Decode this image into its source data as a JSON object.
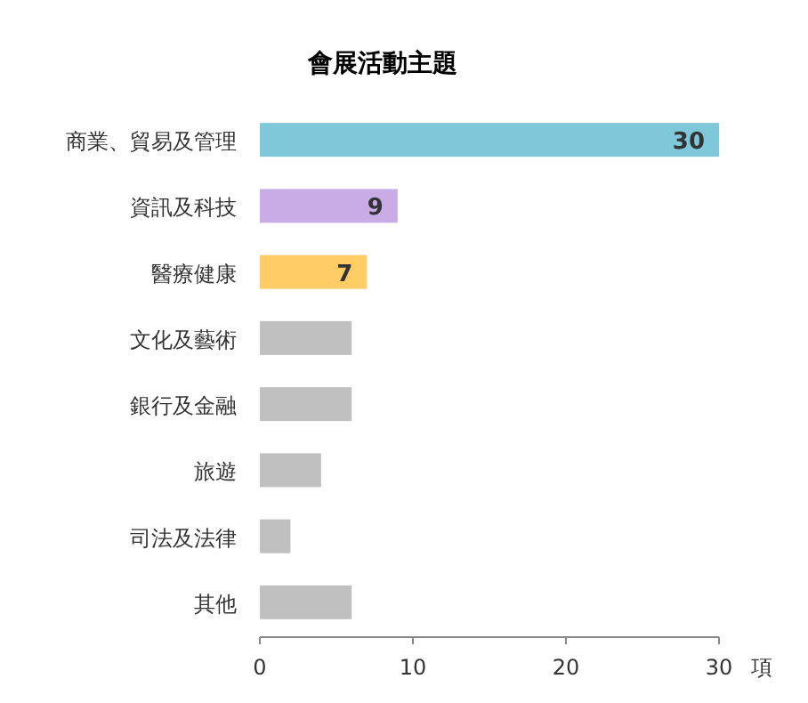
{
  "chart_data": {
    "type": "bar",
    "orientation": "horizontal",
    "title": "會展活動主題",
    "xlabel": "項",
    "categories": [
      "商業、貿易及管理",
      "資訊及科技",
      "醫療健康",
      "文化及藝術",
      "銀行及金融",
      "旅遊",
      "司法及法律",
      "其他"
    ],
    "values": [
      30,
      9,
      7,
      6,
      6,
      4,
      2,
      6
    ],
    "colors": [
      "#7ec8d9",
      "#c9ace6",
      "#ffcc66",
      "#c0c0c0",
      "#c0c0c0",
      "#c0c0c0",
      "#c0c0c0",
      "#c0c0c0"
    ],
    "value_labels": [
      "30",
      "9",
      "7",
      null,
      null,
      null,
      null,
      null
    ],
    "xlim": [
      0,
      30
    ],
    "xticks": [
      0,
      10,
      20,
      30
    ],
    "grid": false
  }
}
